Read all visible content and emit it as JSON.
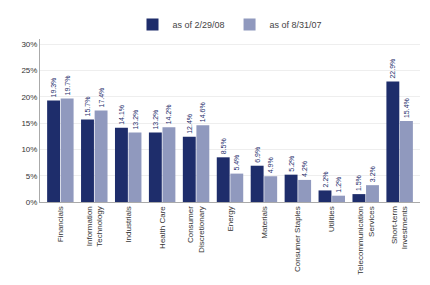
{
  "chart_data": {
    "type": "bar",
    "categories": [
      "Financials",
      "Information\nTechnology",
      "Industrials",
      "Health Care",
      "Consumer\nDiscretionary",
      "Energy",
      "Materials",
      "Consumer Staples",
      "Utilities",
      "Telecommunication\nServices",
      "Short-term\nInvestments"
    ],
    "series": [
      {
        "name": "as of 2/29/08",
        "color": "#1e2d6b",
        "values": [
          19.3,
          15.7,
          14.1,
          13.2,
          12.4,
          8.5,
          6.9,
          5.2,
          2.2,
          1.5,
          22.9
        ],
        "value_labels": [
          "19.3%",
          "15.7%",
          "14.1%",
          "13.2%",
          "12.4%",
          "8.5%",
          "6.9%",
          "5.2%",
          "2.2%",
          "1.5%",
          "22.9%"
        ]
      },
      {
        "name": "as of 8/31/07",
        "color": "#9099be",
        "values": [
          19.7,
          17.4,
          13.2,
          14.2,
          14.6,
          5.4,
          4.9,
          4.2,
          1.2,
          3.2,
          15.4
        ],
        "value_labels": [
          "19.7%",
          "17.4%",
          "13.2%",
          "14.2%",
          "14.6%",
          "5.4%",
          "4.9%",
          "4.2%",
          "1.2%",
          "3.2%",
          "15.4%"
        ]
      }
    ],
    "ylim": [
      0,
      31
    ],
    "yticks": [
      {
        "value": 0,
        "label": "0%"
      },
      {
        "value": 5,
        "label": "5%"
      },
      {
        "value": 10,
        "label": "10%"
      },
      {
        "value": 15,
        "label": "15%"
      },
      {
        "value": 20,
        "label": "20%"
      },
      {
        "value": 25,
        "label": "25%"
      },
      {
        "value": 30,
        "label": "30%"
      }
    ],
    "grid": true,
    "legend": "top",
    "data_labels": true
  }
}
